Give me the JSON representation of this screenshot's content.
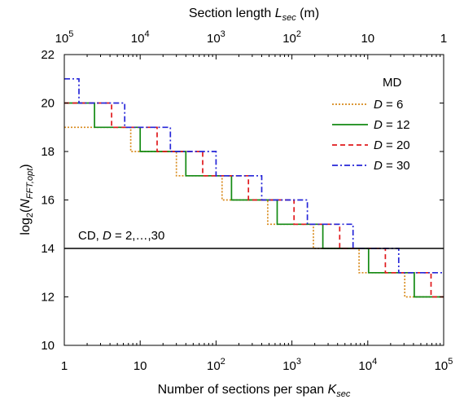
{
  "chart_data": {
    "type": "line",
    "step": true,
    "xscale": "log",
    "xlim": [
      1,
      100000
    ],
    "ylim": [
      10,
      22
    ],
    "grid": false,
    "xlabel_prefix": "Number of sections per span ",
    "xlabel_var": "K",
    "xlabel_sub": "sec",
    "ylabel_prefix": "log",
    "ylabel_base": "2",
    "ylabel_open": "(",
    "ylabel_var": "N",
    "ylabel_sub": "FFT,opt",
    "ylabel_close": ")",
    "top_xlabel_prefix": "Section length ",
    "top_xlabel_var": "L",
    "top_xlabel_sub": "sec",
    "top_xlabel_suffix": " (m)",
    "x_ticks": [
      {
        "x": 1,
        "base": "1",
        "exp": ""
      },
      {
        "x": 10,
        "base": "10",
        "exp": ""
      },
      {
        "x": 100,
        "base": "10",
        "exp": "2"
      },
      {
        "x": 1000,
        "base": "10",
        "exp": "3"
      },
      {
        "x": 10000,
        "base": "10",
        "exp": "4"
      },
      {
        "x": 100000,
        "base": "10",
        "exp": "5"
      }
    ],
    "top_x_ticks": [
      {
        "x": 1,
        "base": "10",
        "exp": "5"
      },
      {
        "x": 10,
        "base": "10",
        "exp": "4"
      },
      {
        "x": 100,
        "base": "10",
        "exp": "3"
      },
      {
        "x": 1000,
        "base": "10",
        "exp": "2"
      },
      {
        "x": 10000,
        "base": "10",
        "exp": ""
      },
      {
        "x": 100000,
        "base": "1",
        "exp": ""
      }
    ],
    "y_ticks": [
      "10",
      "12",
      "14",
      "16",
      "18",
      "20",
      "22"
    ],
    "legend": {
      "position": "top-right",
      "title": "MD",
      "entries": [
        {
          "var": "D",
          "rest": " = 6"
        },
        {
          "var": "D",
          "rest": " = 12"
        },
        {
          "var": "D",
          "rest": " = 20"
        },
        {
          "var": "D",
          "rest": " = 30"
        }
      ]
    },
    "annotation": {
      "prefix": "CD, ",
      "var": "D",
      "rest": " = 2,…,30"
    },
    "cd_line": {
      "y": 14,
      "color": "#000000"
    },
    "series": [
      {
        "key": "D6",
        "color": "#d88a1c",
        "dash": "dotted",
        "breakpoints": [
          1,
          7.5,
          30,
          120,
          480,
          1920,
          7680,
          30720,
          100000
        ],
        "start_y": 19
      },
      {
        "key": "D12",
        "color": "#138a13",
        "dash": "solid",
        "breakpoints": [
          1,
          2.5,
          10,
          40,
          160,
          640,
          2560,
          10240,
          40960,
          100000
        ],
        "start_y": 20
      },
      {
        "key": "D20",
        "color": "#e0191c",
        "dash": "dashed",
        "breakpoints": [
          1,
          4.2,
          16.7,
          66.7,
          267,
          1067,
          4267,
          17067,
          68267,
          100000
        ],
        "start_y": 20
      },
      {
        "key": "D30",
        "color": "#2626d8",
        "dash": "dashdot",
        "breakpoints": [
          1,
          1.56,
          6.25,
          25,
          100,
          400,
          1600,
          6400,
          25600,
          100000
        ],
        "start_y": 21
      }
    ]
  }
}
